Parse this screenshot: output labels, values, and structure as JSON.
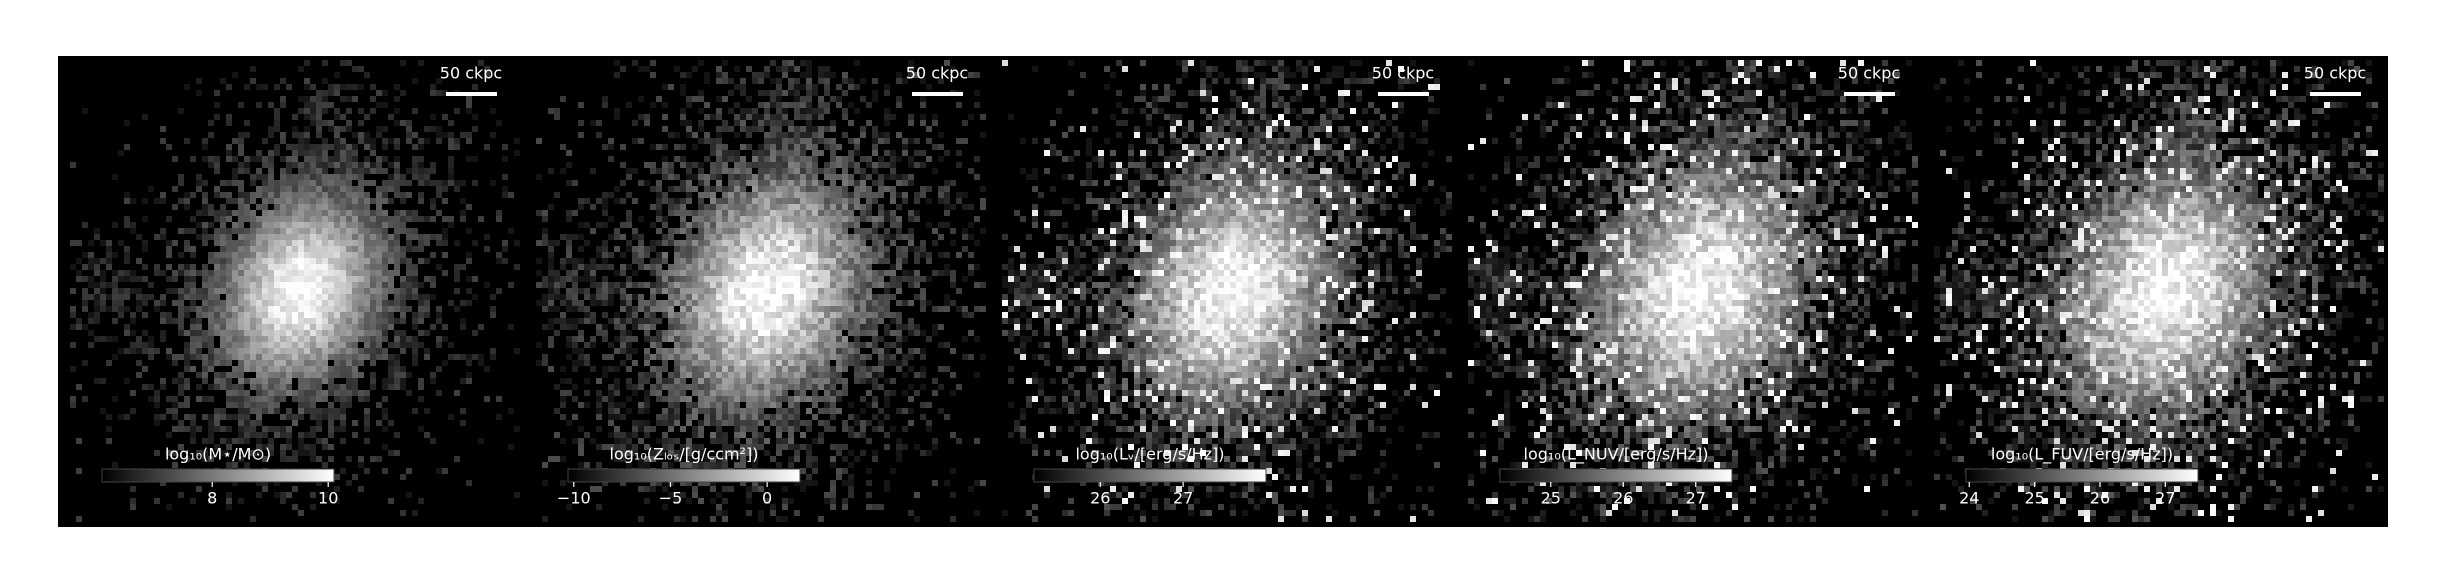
{
  "chart_data": [
    {
      "type": "image",
      "scale_label": "50 ckpc",
      "colorbar_label": "log₁₀(M⋆/M⊙)",
      "clim": [
        6.1,
        10.1
      ],
      "cticks": [
        8,
        10
      ],
      "colormap": "gray"
    },
    {
      "type": "image",
      "scale_label": "50 ckpc",
      "colorbar_label": "log₁₀(Zₗₒₛ/[g/ccm²])",
      "clim": [
        -10.3,
        1.7
      ],
      "cticks": [
        {
          "value": -10,
          "label": "−10"
        },
        {
          "value": -5,
          "label": "−5"
        },
        0
      ],
      "colormap": "gray"
    },
    {
      "type": "image",
      "scale_label": "50 ckpc",
      "colorbar_label": "log₁₀(Lᵥ/[erg/s/Hz])",
      "clim": [
        25.2,
        28.0
      ],
      "cticks": [
        26,
        27
      ],
      "colormap": "gray"
    },
    {
      "type": "image",
      "scale_label": "50 ckpc",
      "colorbar_label": "log₁₀(L_NUV/[erg/s/Hz])",
      "clim": [
        24.3,
        27.5
      ],
      "cticks": [
        25,
        26,
        27
      ],
      "colormap": "gray"
    },
    {
      "type": "image",
      "scale_label": "50 ckpc",
      "colorbar_label": "log₁₀(L_FUV/[erg/s/Hz])",
      "clim": [
        23.95,
        27.5
      ],
      "cticks": [
        24,
        25,
        26,
        27
      ],
      "colormap": "gray"
    }
  ]
}
